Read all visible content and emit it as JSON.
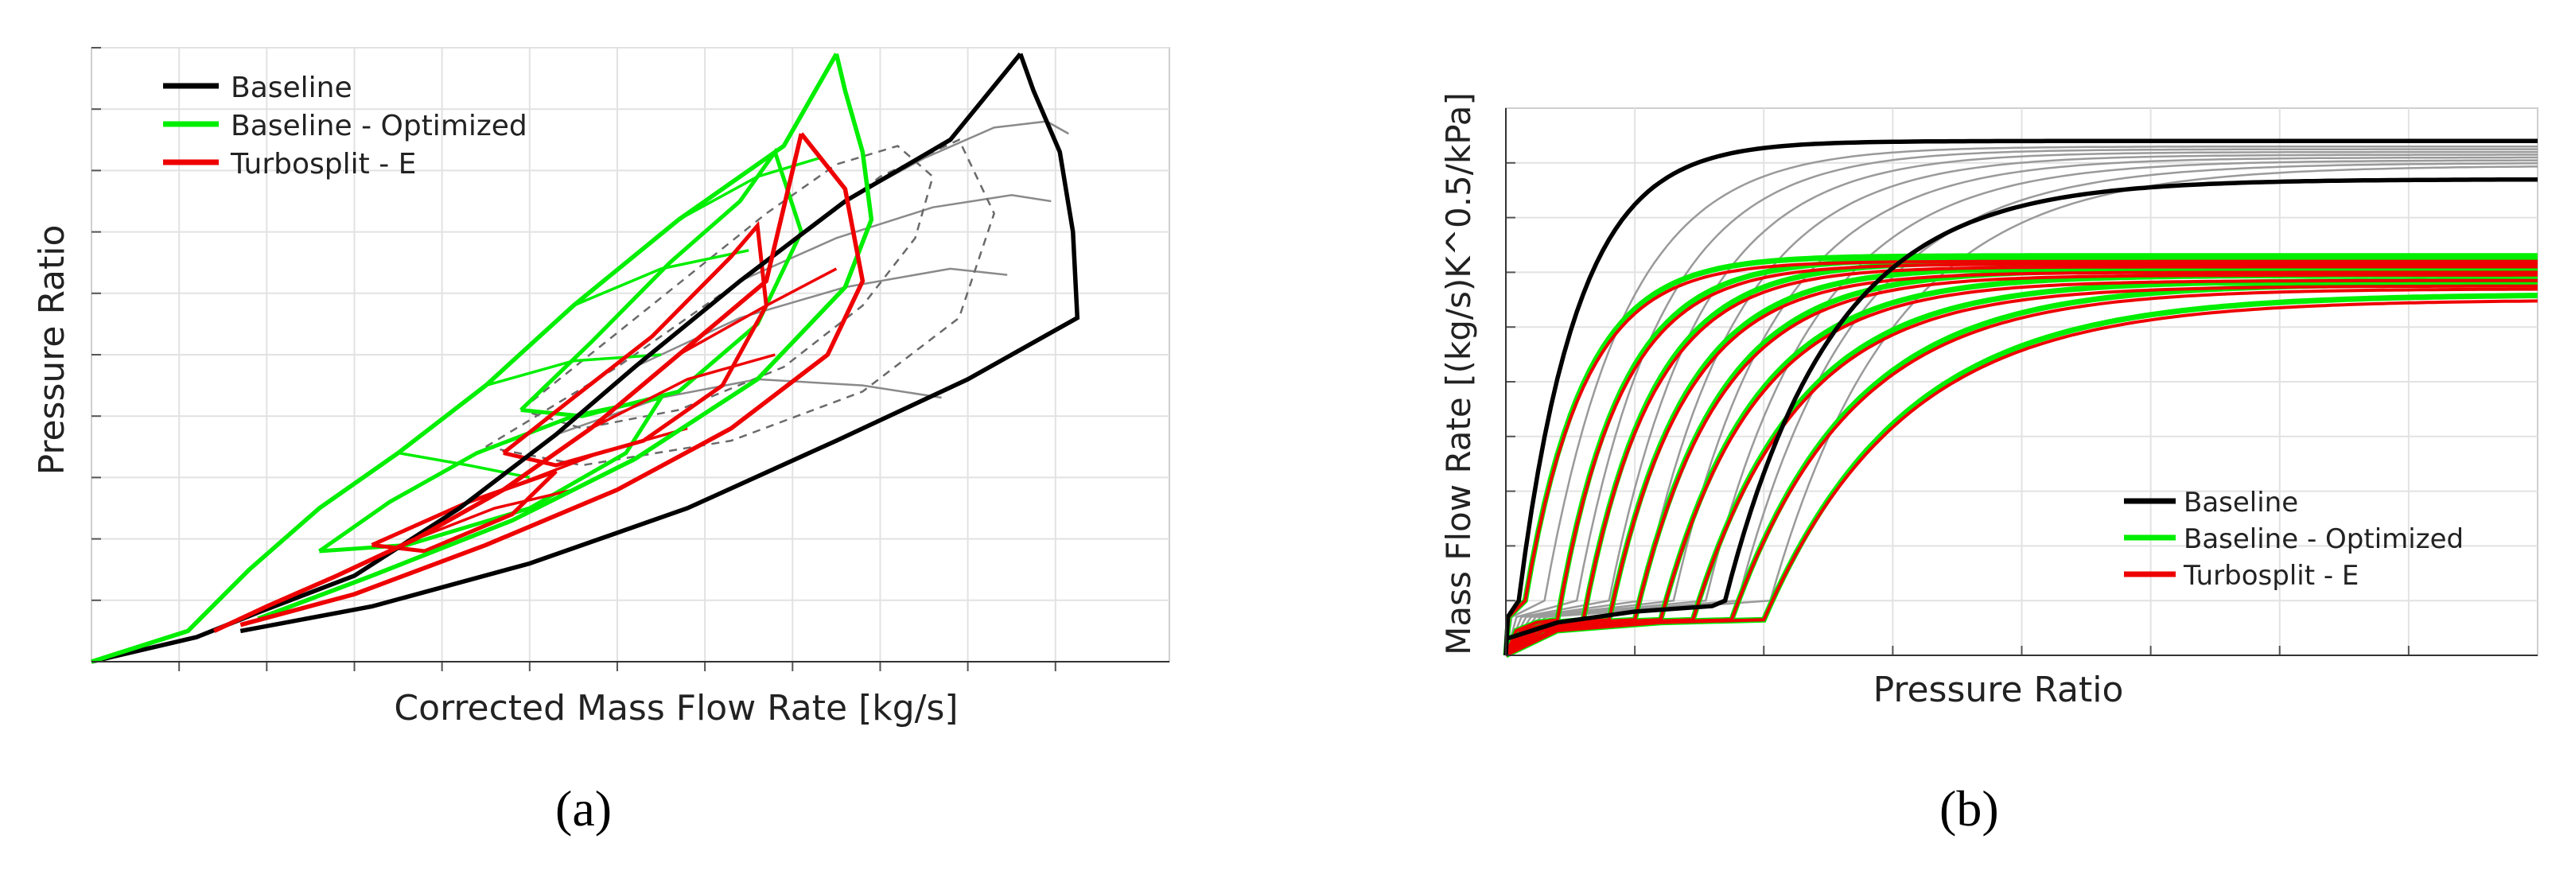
{
  "panels": {
    "a": "(a)",
    "b": "(b)"
  },
  "colors": {
    "baseline": "#000000",
    "optimized": "#00ee00",
    "turbosplit": "#ee0000",
    "grid": "#e2e2e2",
    "speedline_gray": "#8a8a8a",
    "efficiency_gray": "#6a6a6a"
  },
  "chart_data": [
    {
      "id": "a",
      "type": "line",
      "title": "",
      "xlabel": "Corrected Mass Flow Rate [kg/s]",
      "ylabel": "Pressure Ratio",
      "xlim": [
        0,
        12.3
      ],
      "ylim": [
        0,
        10
      ],
      "x_ticks": [
        1,
        2,
        3,
        4,
        5,
        6,
        7,
        8,
        9,
        10,
        11
      ],
      "y_ticks": [
        1,
        2,
        3,
        4,
        5,
        6,
        7,
        8,
        9,
        10
      ],
      "tick_labels_shown": false,
      "grid": true,
      "legend_position": "top-left",
      "legend": [
        "Baseline",
        "Baseline - Optimized",
        "Turbosplit - E"
      ],
      "series": [
        {
          "name": "Baseline",
          "color": "#000000",
          "surge_line": [
            [
              0,
              0
            ],
            [
              1.2,
              0.4
            ],
            [
              1.9,
              0.8
            ],
            [
              3,
              1.4
            ],
            [
              4.2,
              2.5
            ],
            [
              5.3,
              3.7
            ],
            [
              6.2,
              4.8
            ],
            [
              7.4,
              6.2
            ],
            [
              8.6,
              7.5
            ],
            [
              9.8,
              8.5
            ],
            [
              10.6,
              9.9
            ]
          ],
          "choke_line": [
            [
              1.7,
              0.5
            ],
            [
              3.2,
              0.9
            ],
            [
              5,
              1.6
            ],
            [
              6.8,
              2.5
            ],
            [
              8.5,
              3.6
            ],
            [
              10,
              4.6
            ],
            [
              11.25,
              5.6
            ],
            [
              11.2,
              7
            ],
            [
              11.05,
              8.3
            ],
            [
              10.75,
              9.3
            ],
            [
              10.6,
              9.9
            ]
          ],
          "speed_lines": [
            [
              [
                5.3,
                3.7
              ],
              [
                6.5,
                4.3
              ],
              [
                7.6,
                4.6
              ],
              [
                8.8,
                4.5
              ],
              [
                9.7,
                4.3
              ]
            ],
            [
              [
                6.2,
                4.8
              ],
              [
                7.4,
                5.6
              ],
              [
                8.6,
                6.1
              ],
              [
                9.8,
                6.4
              ],
              [
                10.45,
                6.3
              ]
            ],
            [
              [
                7.4,
                6.2
              ],
              [
                8.5,
                6.9
              ],
              [
                9.6,
                7.4
              ],
              [
                10.5,
                7.6
              ],
              [
                10.95,
                7.5
              ]
            ],
            [
              [
                8.6,
                7.5
              ],
              [
                9.5,
                8.2
              ],
              [
                10.3,
                8.7
              ],
              [
                10.9,
                8.8
              ],
              [
                11.15,
                8.6
              ]
            ]
          ],
          "efficiency_islands": [
            [
              [
                4.9,
                4.1
              ],
              [
                5.6,
                4.9
              ],
              [
                6.3,
                5.7
              ],
              [
                7,
                6.5
              ],
              [
                7.7,
                7.3
              ],
              [
                8.5,
                8.1
              ],
              [
                9.2,
                8.4
              ],
              [
                9.6,
                7.9
              ],
              [
                9.4,
                6.9
              ],
              [
                8.8,
                5.8
              ],
              [
                7.9,
                4.8
              ],
              [
                6.7,
                4.1
              ],
              [
                5.6,
                3.8
              ],
              [
                4.9,
                4.1
              ]
            ],
            [
              [
                4.5,
                3.5
              ],
              [
                6,
                4.8
              ],
              [
                7.5,
                6.3
              ],
              [
                9,
                7.9
              ],
              [
                9.9,
                8.5
              ],
              [
                10.3,
                7.3
              ],
              [
                9.9,
                5.6
              ],
              [
                8.8,
                4.4
              ],
              [
                7.3,
                3.6
              ],
              [
                5.6,
                3.2
              ],
              [
                4.5,
                3.5
              ]
            ]
          ]
        },
        {
          "name": "Baseline - Optimized",
          "color": "#00ee00",
          "surge_line": [
            [
              0,
              0
            ],
            [
              1.1,
              0.5
            ],
            [
              1.8,
              1.5
            ],
            [
              2.6,
              2.5
            ],
            [
              3.5,
              3.4
            ],
            [
              4.5,
              4.5
            ],
            [
              5.5,
              5.8
            ],
            [
              6.7,
              7.2
            ],
            [
              7.9,
              8.4
            ],
            [
              8.5,
              9.9
            ]
          ],
          "choke_line": [
            [
              1.9,
              0.7
            ],
            [
              3.2,
              1.4
            ],
            [
              4.8,
              2.3
            ],
            [
              6.2,
              3.3
            ],
            [
              7.6,
              4.6
            ],
            [
              8.6,
              6.1
            ],
            [
              8.9,
              7.2
            ],
            [
              8.8,
              8.3
            ],
            [
              8.6,
              9.3
            ],
            [
              8.5,
              9.9
            ]
          ],
          "speed_lines": [
            [
              [
                3.5,
                3.4
              ],
              [
                4.3,
                3.2
              ],
              [
                5,
                3
              ]
            ],
            [
              [
                4.5,
                4.5
              ],
              [
                5.5,
                4.9
              ],
              [
                6.5,
                5
              ]
            ],
            [
              [
                5.5,
                5.8
              ],
              [
                6.5,
                6.4
              ],
              [
                7.5,
                6.7
              ]
            ],
            [
              [
                6.7,
                7.2
              ],
              [
                7.6,
                7.9
              ],
              [
                8.3,
                8.2
              ]
            ]
          ],
          "efficiency_islands": [
            [
              [
                4.9,
                4.1
              ],
              [
                5.7,
                5.2
              ],
              [
                6.6,
                6.5
              ],
              [
                7.4,
                7.5
              ],
              [
                7.8,
                8.3
              ],
              [
                8.1,
                7
              ],
              [
                7.6,
                5.5
              ],
              [
                6.7,
                4.4
              ],
              [
                5.6,
                4
              ],
              [
                4.9,
                4.1
              ]
            ],
            [
              [
                2.6,
                1.8
              ],
              [
                3.4,
                2.6
              ],
              [
                4.4,
                3.4
              ],
              [
                5.5,
                4
              ],
              [
                6.5,
                4.3
              ],
              [
                6.1,
                3.4
              ],
              [
                5,
                2.5
              ],
              [
                3.6,
                1.9
              ],
              [
                2.6,
                1.8
              ]
            ]
          ]
        },
        {
          "name": "Turbosplit - E",
          "color": "#ee0000",
          "surge_line": [
            [
              1.4,
              0.5
            ],
            [
              2,
              0.9
            ],
            [
              2.8,
              1.4
            ],
            [
              3.7,
              2
            ],
            [
              4.7,
              2.8
            ],
            [
              5.7,
              3.8
            ],
            [
              6.7,
              5
            ],
            [
              7.7,
              6.2
            ],
            [
              8.1,
              8.6
            ]
          ],
          "choke_line": [
            [
              1.7,
              0.6
            ],
            [
              3,
              1.1
            ],
            [
              4.5,
              1.9
            ],
            [
              6,
              2.8
            ],
            [
              7.3,
              3.8
            ],
            [
              8.4,
              5
            ],
            [
              8.8,
              6.2
            ],
            [
              8.6,
              7.7
            ],
            [
              8.1,
              8.6
            ]
          ],
          "speed_lines": [
            [
              [
                3.7,
                2
              ],
              [
                4.6,
                2.5
              ],
              [
                5.5,
                2.8
              ]
            ],
            [
              [
                4.7,
                2.8
              ],
              [
                5.8,
                3.4
              ],
              [
                6.8,
                3.8
              ]
            ],
            [
              [
                5.7,
                3.8
              ],
              [
                6.8,
                4.6
              ],
              [
                7.8,
                5
              ]
            ],
            [
              [
                6.7,
                5
              ],
              [
                7.7,
                5.8
              ],
              [
                8.5,
                6.4
              ]
            ]
          ],
          "efficiency_islands": [
            [
              [
                4.7,
                3.4
              ],
              [
                5.5,
                4.3
              ],
              [
                6.4,
                5.3
              ],
              [
                7.3,
                6.6
              ],
              [
                7.6,
                7.1
              ],
              [
                7.7,
                5.8
              ],
              [
                7.2,
                4.5
              ],
              [
                6.3,
                3.6
              ],
              [
                5.3,
                3.2
              ],
              [
                4.7,
                3.4
              ]
            ],
            [
              [
                3.2,
                1.9
              ],
              [
                4.3,
                2.6
              ],
              [
                5.3,
                3.1
              ],
              [
                4.8,
                2.4
              ],
              [
                3.8,
                1.8
              ],
              [
                3.2,
                1.9
              ]
            ]
          ]
        }
      ]
    },
    {
      "id": "b",
      "type": "line",
      "title": "",
      "xlabel": "Pressure Ratio",
      "ylabel": "Mass Flow Rate [(kg/s)K^0.5/kPa]",
      "xlim": [
        0,
        8
      ],
      "ylim": [
        0,
        10
      ],
      "x_ticks": [
        1,
        2,
        3,
        4,
        5,
        6,
        7
      ],
      "y_ticks": [
        1,
        2,
        3,
        4,
        5,
        6,
        7,
        8,
        9
      ],
      "tick_labels_shown": false,
      "grid": true,
      "legend_position": "bottom-right",
      "legend": [
        "Baseline",
        "Baseline - Optimized",
        "Turbosplit - E"
      ],
      "series": [
        {
          "name": "Baseline",
          "color": "#000000",
          "curves": [
            {
              "x0": 0.1,
              "plateau": 9.4,
              "steep": 2.2
            },
            {
              "x0": 1.7,
              "plateau": 8.7,
              "steep": 1.2,
              "pre_slope": [
                [
                  0,
                  0.3
                ],
                [
                  0.4,
                  0.6
                ],
                [
                  1.0,
                  0.8
                ],
                [
                  1.6,
                  0.9
                ],
                [
                  1.7,
                  1.0
                ]
              ]
            }
          ],
          "gray_fan_x0": [
            0.3,
            0.55,
            0.8,
            1.05,
            1.3,
            1.55,
            1.8,
            2.05
          ],
          "gray_fan_plateau": [
            9.3,
            9.25,
            9.2,
            9.15,
            9.1,
            9.05,
            9.0,
            8.95
          ]
        },
        {
          "name": "Baseline - Optimized",
          "color": "#00ee00",
          "fan_x0": [
            0.15,
            0.4,
            0.6,
            0.8,
            1.0,
            1.2,
            1.45,
            1.75,
            2.0
          ],
          "fan_plateau": [
            7.3,
            7.25,
            7.2,
            7.1,
            7.05,
            6.95,
            6.85,
            6.8,
            6.6
          ]
        },
        {
          "name": "Turbosplit - E",
          "color": "#ee0000",
          "fan_x0": [
            0.15,
            0.4,
            0.6,
            0.8,
            1.0,
            1.2,
            1.45,
            1.75,
            2.0
          ],
          "fan_plateau": [
            7.2,
            7.15,
            7.1,
            7.0,
            6.95,
            6.85,
            6.75,
            6.7,
            6.5
          ]
        }
      ]
    }
  ]
}
